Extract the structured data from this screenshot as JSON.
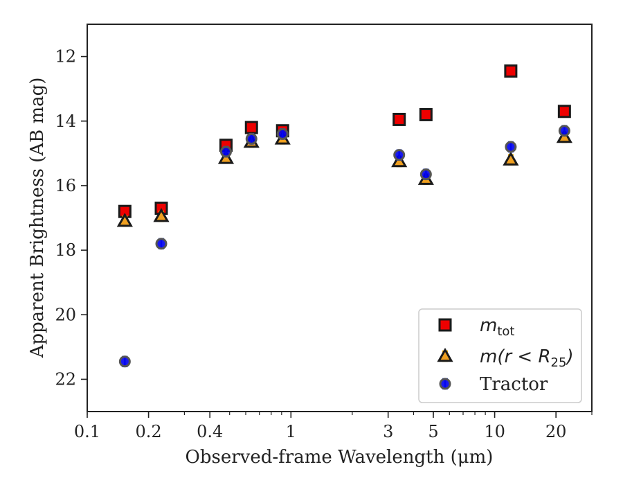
{
  "chart_data": {
    "type": "scatter",
    "xlabel": "Observed-frame Wavelength (μm)",
    "ylabel": "Apparent Brightness (AB mag)",
    "xscale": "log",
    "xlim": [
      0.1,
      30
    ],
    "ylim": [
      23,
      11
    ],
    "y_inverted": true,
    "grid": false,
    "legend_position": "lower-right",
    "x_ticks": [
      {
        "value": 0.1,
        "label": "0.1"
      },
      {
        "value": 0.2,
        "label": "0.2"
      },
      {
        "value": 0.4,
        "label": "0.4"
      },
      {
        "value": 1,
        "label": "1"
      },
      {
        "value": 3,
        "label": "3"
      },
      {
        "value": 5,
        "label": "5"
      },
      {
        "value": 10,
        "label": "10"
      },
      {
        "value": 20,
        "label": "20"
      }
    ],
    "y_ticks": [
      {
        "value": 12,
        "label": "12"
      },
      {
        "value": 14,
        "label": "14"
      },
      {
        "value": 16,
        "label": "16"
      },
      {
        "value": 18,
        "label": "18"
      },
      {
        "value": 20,
        "label": "20"
      },
      {
        "value": 22,
        "label": "22"
      }
    ],
    "series": [
      {
        "name": "m_tot",
        "legend_main": "m",
        "legend_sub": "tot",
        "marker": "square",
        "color": "#ee0000",
        "err_color": "#cc0000",
        "points": [
          {
            "x": 0.153,
            "y": 16.8
          },
          {
            "x": 0.231,
            "y": 16.7
          },
          {
            "x": 0.48,
            "y": 14.75
          },
          {
            "x": 0.64,
            "y": 14.2
          },
          {
            "x": 0.91,
            "y": 14.3
          },
          {
            "x": 3.4,
            "y": 13.95
          },
          {
            "x": 4.6,
            "y": 13.8
          },
          {
            "x": 12.0,
            "y": 12.45
          },
          {
            "x": 22.0,
            "y": 13.7
          }
        ]
      },
      {
        "name": "m(r < R25)",
        "legend_main": "m(r < R",
        "legend_sub": "25",
        "legend_tail": ")",
        "marker": "triangle",
        "color": "#f0a020",
        "err_color": "#e8a800",
        "points": [
          {
            "x": 0.153,
            "y": 17.1
          },
          {
            "x": 0.231,
            "y": 16.95
          },
          {
            "x": 0.48,
            "y": 15.15
          },
          {
            "x": 0.64,
            "y": 14.65
          },
          {
            "x": 0.91,
            "y": 14.55
          },
          {
            "x": 3.4,
            "y": 15.25
          },
          {
            "x": 4.6,
            "y": 15.8
          },
          {
            "x": 12.0,
            "y": 15.2
          },
          {
            "x": 22.0,
            "y": 14.5
          }
        ]
      },
      {
        "name": "Tractor",
        "legend_main": "Tractor",
        "marker": "circle",
        "color": "#0000ee",
        "err_color": "#2244ff",
        "points": [
          {
            "x": 0.153,
            "y": 21.45
          },
          {
            "x": 0.231,
            "y": 17.8
          },
          {
            "x": 0.48,
            "y": 14.95
          },
          {
            "x": 0.64,
            "y": 14.55
          },
          {
            "x": 0.91,
            "y": 14.4
          },
          {
            "x": 3.4,
            "y": 15.05
          },
          {
            "x": 4.6,
            "y": 15.65
          },
          {
            "x": 12.0,
            "y": 14.8
          },
          {
            "x": 22.0,
            "y": 14.3
          }
        ]
      }
    ]
  }
}
